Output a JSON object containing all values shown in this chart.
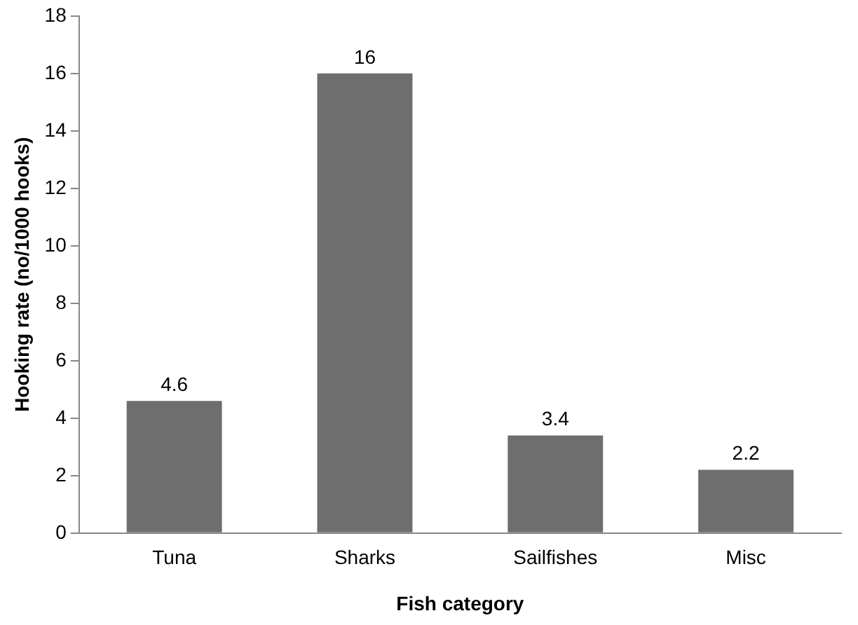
{
  "chart_data": {
    "type": "bar",
    "xlabel": "Fish category",
    "ylabel": "Hooking rate (no/1000 hooks)",
    "categories": [
      "Tuna",
      "Sharks",
      "Sailfishes",
      "Misc"
    ],
    "values": [
      4.6,
      16,
      3.4,
      2.2
    ],
    "color": "#6e6e6e",
    "ylim": [
      0,
      18
    ],
    "yticks": [
      0,
      2,
      4,
      6,
      8,
      10,
      12,
      14,
      16,
      18
    ],
    "grid": false,
    "data_labels": true
  }
}
